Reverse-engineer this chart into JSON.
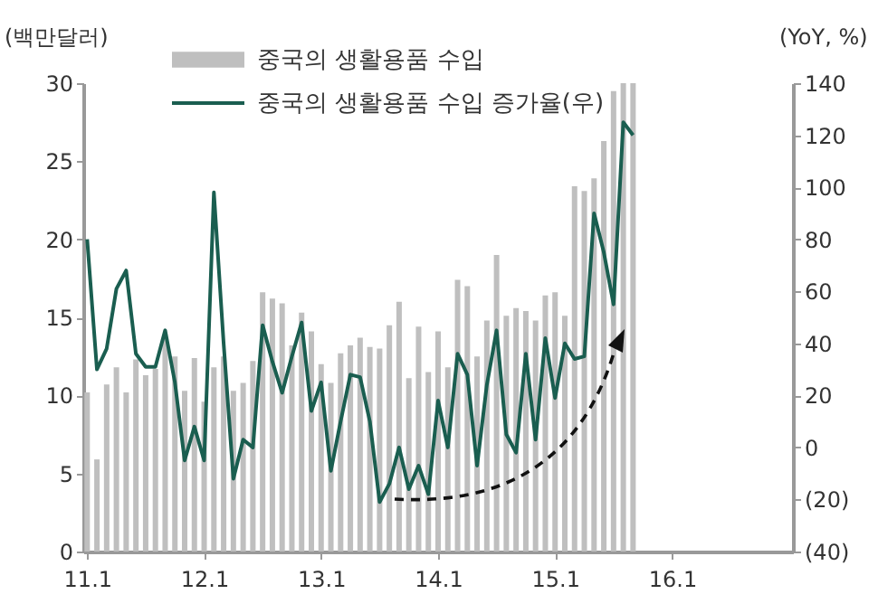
{
  "chart_data": {
    "type": "bar",
    "ylabel": "(백만달러)",
    "y2label": "(YoY, %)",
    "legend": "top left",
    "categories": [
      "11.1",
      null,
      null,
      null,
      null,
      null,
      null,
      null,
      null,
      null,
      null,
      null,
      "12.1",
      null,
      null,
      null,
      null,
      null,
      null,
      null,
      null,
      null,
      null,
      null,
      "13.1",
      null,
      null,
      null,
      null,
      null,
      null,
      null,
      null,
      null,
      null,
      null,
      "14.1",
      null,
      null,
      null,
      null,
      null,
      null,
      null,
      null,
      null,
      null,
      null,
      "15.1",
      null,
      null,
      null,
      null,
      null,
      null,
      null,
      null,
      null,
      null,
      null,
      "16.1",
      null,
      null,
      null,
      null,
      null,
      null,
      null,
      null,
      null,
      null,
      null,
      null
    ],
    "ylim": [
      0,
      30
    ],
    "yticks": [
      0,
      5,
      10,
      15,
      20,
      25,
      30
    ],
    "y2lim": [
      -40,
      140
    ],
    "y2ticks": [
      {
        "value": -40,
        "label": "(40)"
      },
      {
        "value": -20,
        "label": "(20)"
      },
      0,
      20,
      40,
      60,
      80,
      100,
      120,
      140
    ],
    "series": [
      {
        "name": "중국의 생활용품 수입",
        "color": "#bfbfbf",
        "values": [
          10.2,
          5.9,
          10.7,
          11.8,
          10.2,
          12.3,
          11.3,
          11.7,
          13.7,
          12.5,
          10.3,
          12.4,
          9.6,
          11.8,
          12.5,
          10.3,
          10.8,
          12.2,
          16.6,
          16.2,
          15.9,
          13.2,
          15.3,
          14.1,
          12,
          10.8,
          12.7,
          13.2,
          13.7,
          13.1,
          13,
          14.5,
          16,
          11.1,
          14.4,
          11.5,
          14.1,
          11.8,
          17.4,
          17,
          12.5,
          14.8,
          19,
          15.1,
          15.6,
          15.4,
          14.8,
          16.4,
          16.6,
          15.1,
          23.4,
          23.1,
          23.9,
          26.3,
          29.5,
          30,
          30,
          null,
          null,
          null,
          null,
          null,
          null,
          null,
          null,
          null,
          null,
          null,
          null,
          null,
          null,
          null,
          null
        ]
      },
      {
        "name": "중국의 생활용품 수입 증가율(우)",
        "type": "line",
        "axis": "y2",
        "color": "#1a5e50",
        "values": [
          80,
          30,
          38,
          61,
          68,
          36,
          31,
          31,
          45,
          25,
          -5,
          8,
          -5,
          98,
          40,
          -12,
          3,
          0,
          47,
          33,
          21,
          35,
          48,
          14,
          25,
          -9,
          10,
          28,
          27,
          10,
          -21,
          -14,
          0,
          -16,
          -7,
          -18,
          18,
          0,
          36,
          28,
          -7,
          24,
          45,
          5,
          -2,
          36,
          3,
          42,
          19,
          40,
          34,
          35,
          90,
          75,
          55,
          125,
          120,
          null,
          null,
          null,
          null,
          null,
          null,
          null,
          null,
          null,
          null,
          null,
          null,
          null,
          null,
          null,
          null
        ]
      }
    ]
  }
}
